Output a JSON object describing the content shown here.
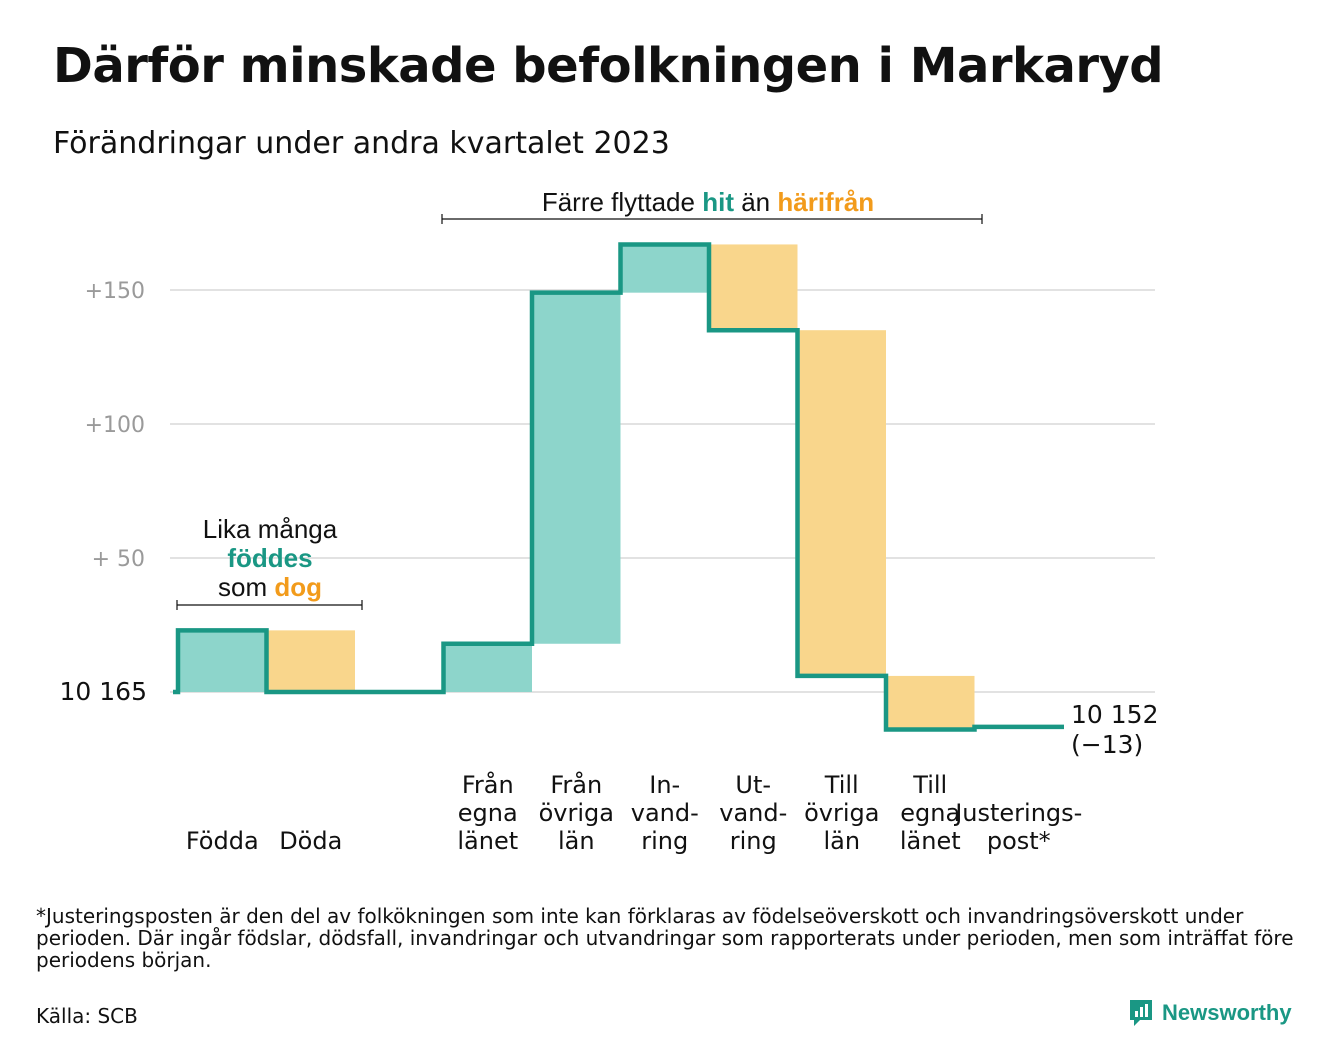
{
  "title": "Därför minskade befolkningen i Markaryd",
  "subtitle": "Förändringar under andra kvartalet 2023",
  "chart_data": {
    "type": "waterfall",
    "start_label": "10  165",
    "end_label": "10 152",
    "end_change_label": "(−13)",
    "ylim": [
      -24,
      180
    ],
    "y_ticks": [
      {
        "value": 150,
        "label": "+150"
      },
      {
        "value": 100,
        "label": "+100"
      },
      {
        "value": 50,
        "label": "+  50"
      }
    ],
    "grid": true,
    "steps": [
      {
        "label_lines": [
          "Födda"
        ],
        "change": 23,
        "kind": "in"
      },
      {
        "label_lines": [
          "Döda"
        ],
        "change": -23,
        "kind": "out"
      },
      {
        "label_lines": [],
        "change": 0,
        "kind": "none"
      },
      {
        "label_lines": [
          "Från",
          "egna",
          "länet"
        ],
        "change": 18,
        "kind": "in"
      },
      {
        "label_lines": [
          "Från",
          "övriga",
          "län"
        ],
        "change": 131,
        "kind": "in"
      },
      {
        "label_lines": [
          "In-",
          "vand-",
          "ring"
        ],
        "change": 18,
        "kind": "in"
      },
      {
        "label_lines": [
          "Ut-",
          "vand-",
          "ring"
        ],
        "change": -32,
        "kind": "out"
      },
      {
        "label_lines": [
          "Till",
          "övriga",
          "län"
        ],
        "change": -129,
        "kind": "out"
      },
      {
        "label_lines": [
          "Till",
          "egna",
          "länet"
        ],
        "change": -20,
        "kind": "out"
      },
      {
        "label_lines": [
          "Justerings-",
          "post*"
        ],
        "change": 1,
        "kind": "adjust"
      }
    ],
    "annotations": [
      {
        "lines": [
          [
            {
              "text": "Lika många",
              "style": "plain"
            }
          ],
          [
            {
              "text": "föddes",
              "style": "in"
            }
          ],
          [
            {
              "text": "som ",
              "style": "plain"
            },
            {
              "text": "dog",
              "style": "out"
            }
          ]
        ]
      },
      {
        "lines": [
          [
            {
              "text": "Färre flyttade ",
              "style": "plain"
            },
            {
              "text": "hit",
              "style": "in"
            },
            {
              "text": " än ",
              "style": "plain"
            },
            {
              "text": "härifrån",
              "style": "out"
            }
          ]
        ]
      }
    ],
    "colors": {
      "line": "#1a9784",
      "in_fill": "#8dd5cb",
      "out_fill": "#f9d68c",
      "out_text": "#f29b1b",
      "grid": "#e2e2e2"
    }
  },
  "footnote": "*Justeringsposten är den del av folkökningen som inte kan förklaras av födelseöverskott och invandringsöverskott under perioden. Där ingår födslar, dödsfall, invandringar och utvandringar som rapporterats under perioden, men som inträffat före periodens början.",
  "source": "Källa: SCB",
  "brand": {
    "name": "Newsworthy",
    "icon": "newsworthy-logo-icon"
  }
}
